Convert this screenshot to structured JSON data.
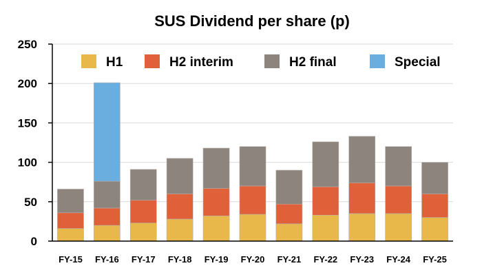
{
  "chart_data": {
    "type": "bar",
    "stacked": true,
    "title": "SUS Dividend per share (p)",
    "xlabel": "",
    "ylabel": "",
    "ylim": [
      0,
      250
    ],
    "yticks": [
      0,
      50,
      100,
      150,
      200,
      250
    ],
    "grid": true,
    "legend_position": "top",
    "categories": [
      "FY-15",
      "FY-16",
      "FY-17",
      "FY-18",
      "FY-19",
      "FY-20",
      "FY-21",
      "FY-22",
      "FY-23",
      "FY-24",
      "FY-25"
    ],
    "series": [
      {
        "name": "H1",
        "color": "#E8B84B",
        "values": [
          16,
          20,
          23,
          28,
          32,
          34,
          22,
          33,
          35,
          35,
          30
        ]
      },
      {
        "name": "H2 interim",
        "color": "#E0603A",
        "values": [
          20,
          22,
          29,
          32,
          35,
          36,
          25,
          36,
          39,
          35,
          30
        ]
      },
      {
        "name": "H2 final",
        "color": "#8C847D",
        "values": [
          30,
          34,
          39,
          45,
          51,
          50,
          43,
          57,
          59,
          50,
          40
        ]
      },
      {
        "name": "Special",
        "color": "#6AAEDF",
        "values": [
          0,
          125,
          0,
          0,
          0,
          0,
          0,
          0,
          0,
          0,
          0
        ]
      }
    ]
  }
}
